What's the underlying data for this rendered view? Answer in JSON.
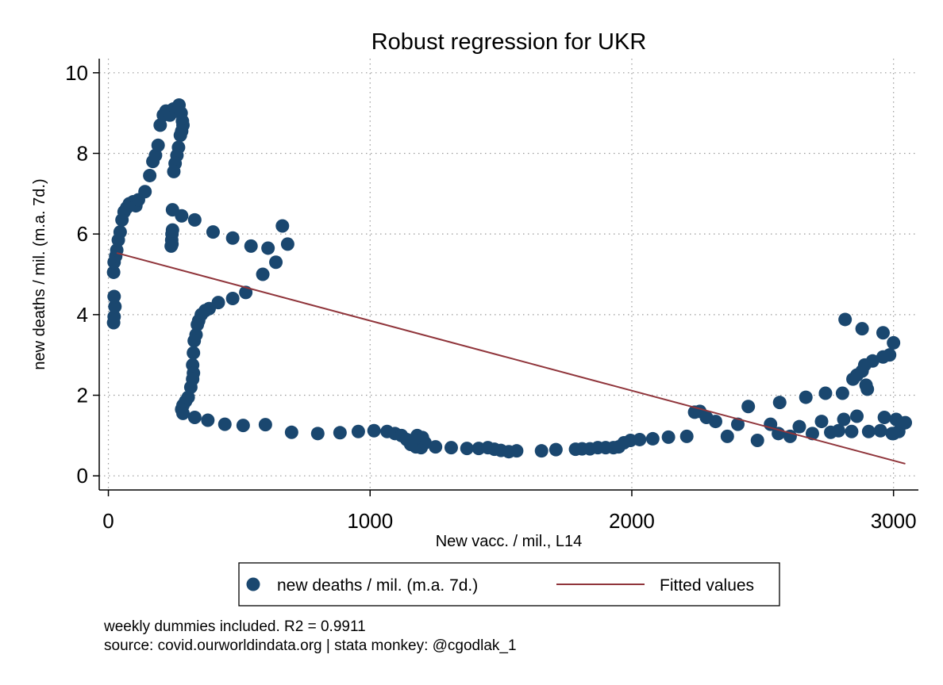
{
  "colors": {
    "marker": "#1a476f",
    "fit_line": "#90353b",
    "grid": "#9a9a9a"
  },
  "chart_data": {
    "type": "scatter",
    "title": "Robust regression for UKR",
    "xlabel": "New vacc. / mil., L14",
    "ylabel": "new deaths / mil. (m.a. 7d.)",
    "xlim": [
      -35,
      3095
    ],
    "ylim": [
      -0.35,
      10.35
    ],
    "x_ticks": [
      0,
      1000,
      2000,
      3000
    ],
    "y_ticks": [
      0,
      2,
      4,
      6,
      8,
      10
    ],
    "grid": true,
    "legend_position": "bottom",
    "series": [
      {
        "name": "new deaths / mil. (m.a. 7d.)",
        "kind": "scatter",
        "points": [
          [
            20,
            3.8
          ],
          [
            22,
            3.95
          ],
          [
            25,
            4.2
          ],
          [
            22,
            4.45
          ],
          [
            20,
            5.05
          ],
          [
            22,
            5.3
          ],
          [
            28,
            5.45
          ],
          [
            32,
            5.6
          ],
          [
            38,
            5.85
          ],
          [
            45,
            6.05
          ],
          [
            52,
            6.35
          ],
          [
            60,
            6.55
          ],
          [
            70,
            6.65
          ],
          [
            80,
            6.75
          ],
          [
            95,
            6.8
          ],
          [
            105,
            6.7
          ],
          [
            115,
            6.85
          ],
          [
            140,
            7.05
          ],
          [
            158,
            7.45
          ],
          [
            170,
            7.8
          ],
          [
            180,
            7.95
          ],
          [
            190,
            8.2
          ],
          [
            198,
            8.7
          ],
          [
            210,
            8.95
          ],
          [
            220,
            9.05
          ],
          [
            235,
            8.95
          ],
          [
            248,
            9.1
          ],
          [
            260,
            9.05
          ],
          [
            270,
            9.2
          ],
          [
            278,
            9.0
          ],
          [
            283,
            8.8
          ],
          [
            285,
            8.7
          ],
          [
            280,
            8.55
          ],
          [
            275,
            8.45
          ],
          [
            268,
            8.15
          ],
          [
            262,
            7.95
          ],
          [
            255,
            7.75
          ],
          [
            250,
            7.55
          ],
          [
            245,
            6.6
          ],
          [
            280,
            6.45
          ],
          [
            330,
            6.35
          ],
          [
            245,
            6.1
          ],
          [
            243,
            6.0
          ],
          [
            242,
            5.85
          ],
          [
            243,
            5.75
          ],
          [
            240,
            5.7
          ],
          [
            400,
            6.05
          ],
          [
            475,
            5.9
          ],
          [
            545,
            5.7
          ],
          [
            610,
            5.65
          ],
          [
            665,
            6.2
          ],
          [
            685,
            5.75
          ],
          [
            640,
            5.3
          ],
          [
            590,
            5.0
          ],
          [
            525,
            4.55
          ],
          [
            475,
            4.4
          ],
          [
            420,
            4.3
          ],
          [
            385,
            4.15
          ],
          [
            370,
            4.1
          ],
          [
            355,
            4.0
          ],
          [
            345,
            3.85
          ],
          [
            340,
            3.75
          ],
          [
            335,
            3.5
          ],
          [
            328,
            3.35
          ],
          [
            325,
            3.05
          ],
          [
            322,
            2.75
          ],
          [
            325,
            2.55
          ],
          [
            322,
            2.4
          ],
          [
            315,
            2.2
          ],
          [
            305,
            1.95
          ],
          [
            295,
            1.85
          ],
          [
            285,
            1.75
          ],
          [
            280,
            1.65
          ],
          [
            285,
            1.55
          ],
          [
            330,
            1.45
          ],
          [
            380,
            1.38
          ],
          [
            445,
            1.28
          ],
          [
            515,
            1.25
          ],
          [
            600,
            1.27
          ],
          [
            700,
            1.08
          ],
          [
            800,
            1.05
          ],
          [
            885,
            1.07
          ],
          [
            955,
            1.1
          ],
          [
            1015,
            1.12
          ],
          [
            1065,
            1.1
          ],
          [
            1095,
            1.05
          ],
          [
            1120,
            1.0
          ],
          [
            1140,
            0.9
          ],
          [
            1160,
            0.8
          ],
          [
            1175,
            0.72
          ],
          [
            1195,
            0.7
          ],
          [
            1210,
            0.82
          ],
          [
            1200,
            0.95
          ],
          [
            1180,
            1.0
          ],
          [
            1165,
            0.88
          ],
          [
            1155,
            0.78
          ],
          [
            1250,
            0.72
          ],
          [
            1310,
            0.7
          ],
          [
            1370,
            0.68
          ],
          [
            1415,
            0.68
          ],
          [
            1450,
            0.7
          ],
          [
            1475,
            0.66
          ],
          [
            1500,
            0.63
          ],
          [
            1530,
            0.6
          ],
          [
            1560,
            0.62
          ],
          [
            1655,
            0.62
          ],
          [
            1710,
            0.65
          ],
          [
            1785,
            0.66
          ],
          [
            1810,
            0.67
          ],
          [
            1840,
            0.67
          ],
          [
            1870,
            0.7
          ],
          [
            1900,
            0.7
          ],
          [
            1930,
            0.7
          ],
          [
            1950,
            0.72
          ],
          [
            1970,
            0.82
          ],
          [
            1995,
            0.88
          ],
          [
            2030,
            0.9
          ],
          [
            2080,
            0.92
          ],
          [
            2140,
            0.96
          ],
          [
            2210,
            0.98
          ],
          [
            2240,
            1.58
          ],
          [
            2260,
            1.6
          ],
          [
            2285,
            1.45
          ],
          [
            2320,
            1.35
          ],
          [
            2365,
            0.98
          ],
          [
            2405,
            1.28
          ],
          [
            2445,
            1.72
          ],
          [
            2480,
            0.88
          ],
          [
            2530,
            1.28
          ],
          [
            2560,
            1.05
          ],
          [
            2565,
            1.82
          ],
          [
            2605,
            0.98
          ],
          [
            2640,
            1.22
          ],
          [
            2665,
            1.95
          ],
          [
            2690,
            1.05
          ],
          [
            2725,
            1.35
          ],
          [
            2740,
            2.05
          ],
          [
            2760,
            1.08
          ],
          [
            2790,
            1.12
          ],
          [
            2810,
            1.4
          ],
          [
            2805,
            2.05
          ],
          [
            2840,
            1.1
          ],
          [
            2845,
            2.4
          ],
          [
            2860,
            2.5
          ],
          [
            2880,
            2.6
          ],
          [
            2890,
            2.75
          ],
          [
            2900,
            2.15
          ],
          [
            2895,
            2.25
          ],
          [
            2905,
            1.1
          ],
          [
            2920,
            2.85
          ],
          [
            2950,
            1.12
          ],
          [
            2960,
            2.95
          ],
          [
            2965,
            1.45
          ],
          [
            2985,
            3.0
          ],
          [
            2995,
            1.05
          ],
          [
            3010,
            1.4
          ],
          [
            3020,
            1.1
          ],
          [
            3035,
            1.3
          ],
          [
            3045,
            1.32
          ],
          [
            3000,
            3.3
          ],
          [
            2960,
            3.55
          ],
          [
            2880,
            3.65
          ],
          [
            2815,
            3.88
          ],
          [
            2860,
            1.48
          ],
          [
            3000,
            1.05
          ]
        ]
      },
      {
        "name": "Fitted values",
        "kind": "line",
        "points": [
          [
            32,
            5.53
          ],
          [
            3045,
            0.3
          ]
        ]
      }
    ],
    "legend": [
      {
        "label": "new deaths / mil. (m.a. 7d.)",
        "symbol": "marker"
      },
      {
        "label": "Fitted values",
        "symbol": "line"
      }
    ]
  },
  "notes": {
    "line1": "weekly dummies included. R2 = 0.9911",
    "line2": "source: covid.ourworldindata.org | stata monkey: @cgodlak_1"
  }
}
